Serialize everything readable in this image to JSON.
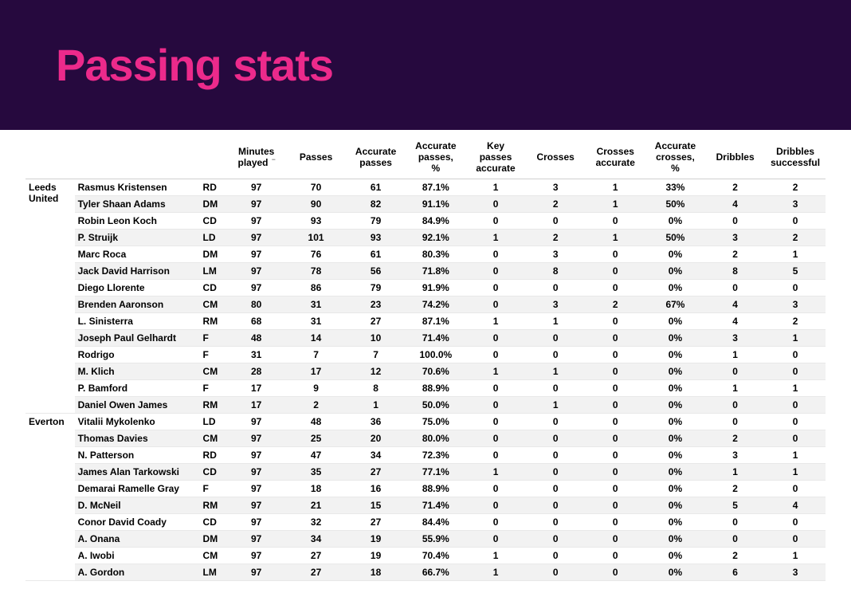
{
  "colors": {
    "header_bg": "#26093e",
    "title_color": "#ec2a8b",
    "row_stripe": "#f2f2f2",
    "border": "#e8e8e8",
    "header_border": "#d0d0d0"
  },
  "title": "Passing stats",
  "sort_column_index": 3,
  "columns": [
    "Minutes played",
    "Passes",
    "Accurate passes",
    "Accurate passes, %",
    "Key passes accurate",
    "Crosses",
    "Crosses accurate",
    "Accurate crosses, %",
    "Dribbles",
    "Dribbles successful"
  ],
  "groups": [
    {
      "team": "Leeds United",
      "rows": [
        {
          "name": "Rasmus Kristensen",
          "pos": "RD",
          "vals": [
            "97",
            "70",
            "61",
            "87.1%",
            "1",
            "3",
            "1",
            "33%",
            "2",
            "2"
          ]
        },
        {
          "name": "Tyler Shaan Adams",
          "pos": "DM",
          "vals": [
            "97",
            "90",
            "82",
            "91.1%",
            "0",
            "2",
            "1",
            "50%",
            "4",
            "3"
          ]
        },
        {
          "name": "Robin Leon Koch",
          "pos": "CD",
          "vals": [
            "97",
            "93",
            "79",
            "84.9%",
            "0",
            "0",
            "0",
            "0%",
            "0",
            "0"
          ]
        },
        {
          "name": "P. Struijk",
          "pos": "LD",
          "vals": [
            "97",
            "101",
            "93",
            "92.1%",
            "1",
            "2",
            "1",
            "50%",
            "3",
            "2"
          ]
        },
        {
          "name": "Marc Roca",
          "pos": "DM",
          "vals": [
            "97",
            "76",
            "61",
            "80.3%",
            "0",
            "3",
            "0",
            "0%",
            "2",
            "1"
          ]
        },
        {
          "name": "Jack David Harrison",
          "pos": "LM",
          "vals": [
            "97",
            "78",
            "56",
            "71.8%",
            "0",
            "8",
            "0",
            "0%",
            "8",
            "5"
          ]
        },
        {
          "name": "Diego Llorente",
          "pos": "CD",
          "vals": [
            "97",
            "86",
            "79",
            "91.9%",
            "0",
            "0",
            "0",
            "0%",
            "0",
            "0"
          ]
        },
        {
          "name": "Brenden Aaronson",
          "pos": "CM",
          "vals": [
            "80",
            "31",
            "23",
            "74.2%",
            "0",
            "3",
            "2",
            "67%",
            "4",
            "3"
          ]
        },
        {
          "name": "L. Sinisterra",
          "pos": "RM",
          "vals": [
            "68",
            "31",
            "27",
            "87.1%",
            "1",
            "1",
            "0",
            "0%",
            "4",
            "2"
          ]
        },
        {
          "name": "Joseph Paul Gelhardt",
          "pos": "F",
          "vals": [
            "48",
            "14",
            "10",
            "71.4%",
            "0",
            "0",
            "0",
            "0%",
            "3",
            "1"
          ]
        },
        {
          "name": "Rodrigo",
          "pos": "F",
          "vals": [
            "31",
            "7",
            "7",
            "100.0%",
            "0",
            "0",
            "0",
            "0%",
            "1",
            "0"
          ]
        },
        {
          "name": "M. Klich",
          "pos": "CM",
          "vals": [
            "28",
            "17",
            "12",
            "70.6%",
            "1",
            "1",
            "0",
            "0%",
            "0",
            "0"
          ]
        },
        {
          "name": "P. Bamford",
          "pos": "F",
          "vals": [
            "17",
            "9",
            "8",
            "88.9%",
            "0",
            "0",
            "0",
            "0%",
            "1",
            "1"
          ]
        },
        {
          "name": "Daniel Owen James",
          "pos": "RM",
          "vals": [
            "17",
            "2",
            "1",
            "50.0%",
            "0",
            "1",
            "0",
            "0%",
            "0",
            "0"
          ]
        }
      ]
    },
    {
      "team": "Everton",
      "rows": [
        {
          "name": "Vitalii Mykolenko",
          "pos": "LD",
          "vals": [
            "97",
            "48",
            "36",
            "75.0%",
            "0",
            "0",
            "0",
            "0%",
            "0",
            "0"
          ]
        },
        {
          "name": "Thomas Davies",
          "pos": "CM",
          "vals": [
            "97",
            "25",
            "20",
            "80.0%",
            "0",
            "0",
            "0",
            "0%",
            "2",
            "0"
          ]
        },
        {
          "name": "N. Patterson",
          "pos": "RD",
          "vals": [
            "97",
            "47",
            "34",
            "72.3%",
            "0",
            "0",
            "0",
            "0%",
            "3",
            "1"
          ]
        },
        {
          "name": "James Alan Tarkowski",
          "pos": "CD",
          "vals": [
            "97",
            "35",
            "27",
            "77.1%",
            "1",
            "0",
            "0",
            "0%",
            "1",
            "1"
          ]
        },
        {
          "name": "Demarai Ramelle Gray",
          "pos": "F",
          "vals": [
            "97",
            "18",
            "16",
            "88.9%",
            "0",
            "0",
            "0",
            "0%",
            "2",
            "0"
          ]
        },
        {
          "name": "D. McNeil",
          "pos": "RM",
          "vals": [
            "97",
            "21",
            "15",
            "71.4%",
            "0",
            "0",
            "0",
            "0%",
            "5",
            "4"
          ]
        },
        {
          "name": "Conor David Coady",
          "pos": "CD",
          "vals": [
            "97",
            "32",
            "27",
            "84.4%",
            "0",
            "0",
            "0",
            "0%",
            "0",
            "0"
          ]
        },
        {
          "name": "A. Onana",
          "pos": "DM",
          "vals": [
            "97",
            "34",
            "19",
            "55.9%",
            "0",
            "0",
            "0",
            "0%",
            "0",
            "0"
          ]
        },
        {
          "name": "A. Iwobi",
          "pos": "CM",
          "vals": [
            "97",
            "27",
            "19",
            "70.4%",
            "1",
            "0",
            "0",
            "0%",
            "2",
            "1"
          ]
        },
        {
          "name": "A. Gordon",
          "pos": "LM",
          "vals": [
            "97",
            "27",
            "18",
            "66.7%",
            "1",
            "0",
            "0",
            "0%",
            "6",
            "3"
          ]
        }
      ]
    }
  ]
}
